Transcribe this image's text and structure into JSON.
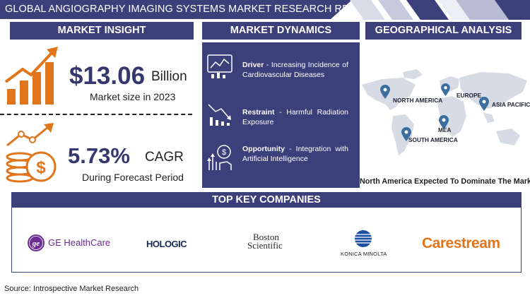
{
  "report_title": "GLOBAL ANGIOGRAPHY IMAGING SYSTEMS MARKET RESEARCH REPORT",
  "colors": {
    "navy": "#3b3f7a",
    "orange": "#e0751c",
    "text": "#222222",
    "map_gray": "#d6dbe6",
    "pin_blue": "#3d6f9e"
  },
  "insight": {
    "header": "MARKET INSIGHT",
    "size_value": "$13.06",
    "size_unit": "Billion",
    "size_caption": "Market size in 2023",
    "cagr_value": "5.73%",
    "cagr_unit": "CAGR",
    "cagr_caption": "During Forecast Period",
    "icons": [
      "growth-bar-chart-icon",
      "coin-stack-growth-icon"
    ]
  },
  "dynamics": {
    "header": "MARKET DYNAMICS",
    "items": [
      {
        "label": "Driver",
        "text": " - Increasing Incidence of Cardiovascular Diseases",
        "icon": "line-chart-monitor-icon"
      },
      {
        "label": "Restraint",
        "text": " - Harmful Radiation Exposure",
        "icon": "declining-chart-icon"
      },
      {
        "label": "Opportunity",
        "text": " - Integration with Artificial Intelligence",
        "icon": "dollar-growth-hand-icon"
      }
    ]
  },
  "geography": {
    "header": "GEOGRAPHICAL ANALYSIS",
    "regions": [
      "NORTH AMERICA",
      "EUROPE",
      "ASIA PACIFIC",
      "MEA",
      "SOUTH AMERICA"
    ],
    "caption": "North America Expected To Dominate The Market"
  },
  "companies": {
    "header": "TOP KEY COMPANIES",
    "names": [
      "GE HealthCare",
      "HOLOGIC",
      "Boston",
      "Scientific",
      "KONICA MINOLTA",
      "Carestream"
    ],
    "ge_monogram": "ge"
  },
  "source": "Source: Introspective Market Research"
}
